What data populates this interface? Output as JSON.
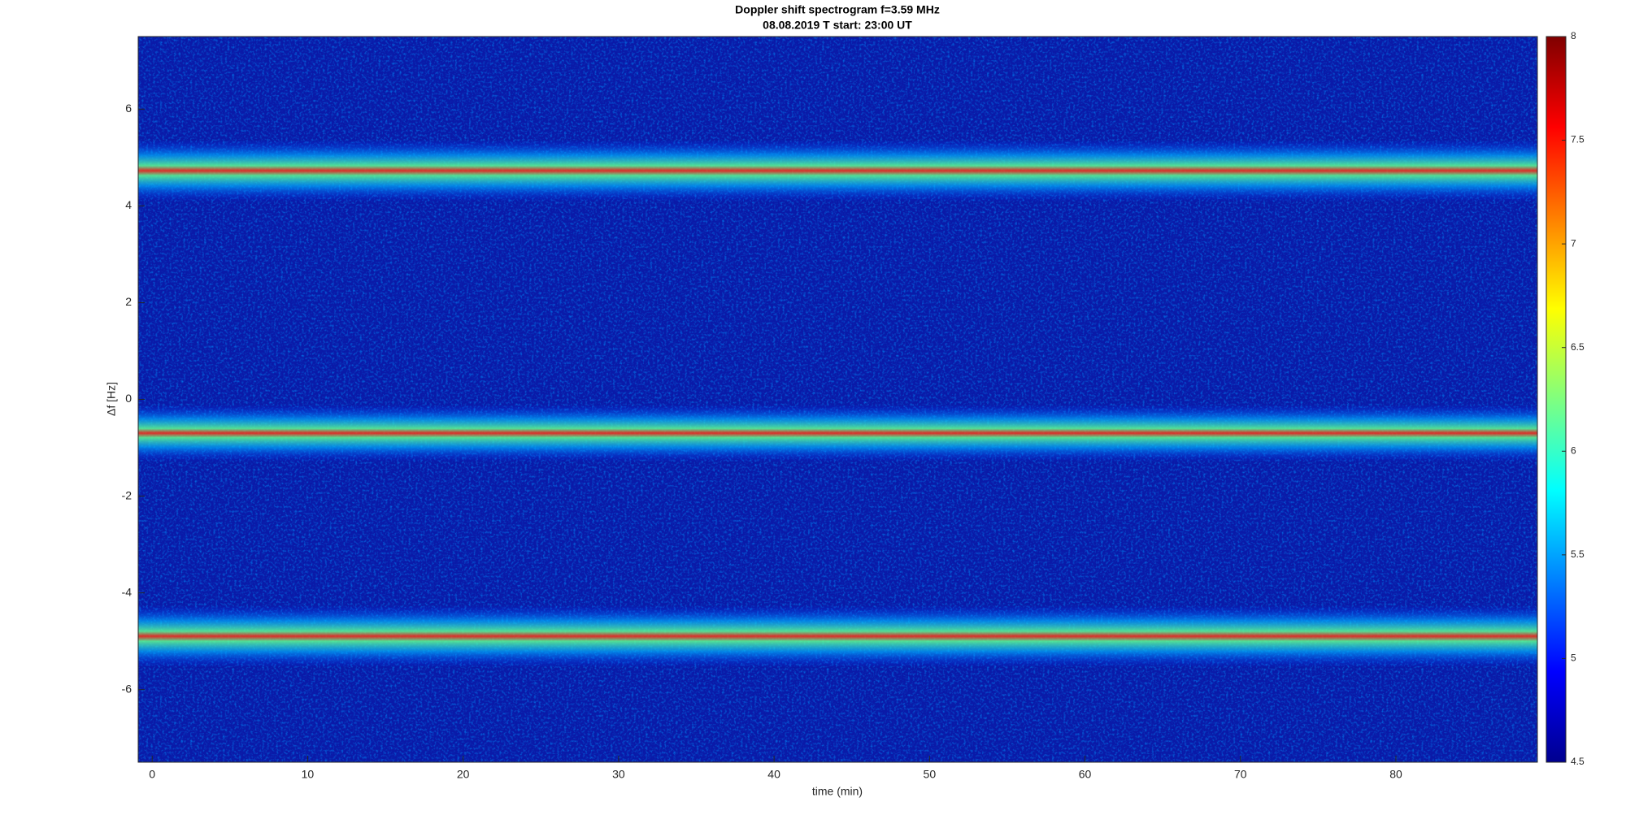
{
  "chart_data": {
    "type": "heatmap",
    "title": "Doppler shift spectrogram f=3.59 MHz",
    "subtitle": "08.08.2019    T start: 23:00 UT",
    "x_label": "time (min)",
    "y_label": "Δf [Hz]",
    "xlim": [
      -0.9,
      89.1
    ],
    "xticks": [
      0,
      10,
      20,
      30,
      40,
      50,
      60,
      70,
      80
    ],
    "ylim": [
      -7.5,
      7.5
    ],
    "yticks": [
      -6,
      -4,
      -2,
      0,
      2,
      4,
      6
    ],
    "clim": [
      4.5,
      8
    ],
    "cticks": [
      4.5,
      5,
      5.5,
      6,
      6.5,
      7,
      7.5,
      8
    ]
  }
}
